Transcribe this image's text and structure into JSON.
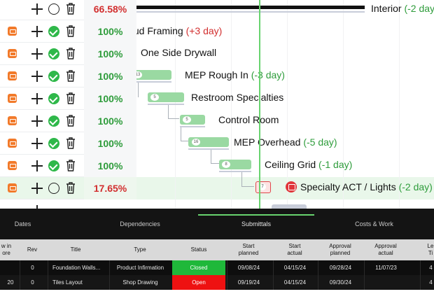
{
  "rows": [
    {
      "status": "open",
      "percent": "66.58%",
      "percent_color": "red",
      "has_task_icon": false
    },
    {
      "status": "done",
      "percent": "100%",
      "percent_color": "green",
      "has_task_icon": true
    },
    {
      "status": "done",
      "percent": "100%",
      "percent_color": "green",
      "has_task_icon": true
    },
    {
      "status": "done",
      "percent": "100%",
      "percent_color": "green",
      "has_task_icon": true
    },
    {
      "status": "done",
      "percent": "100%",
      "percent_color": "green",
      "has_task_icon": true
    },
    {
      "status": "done",
      "percent": "100%",
      "percent_color": "green",
      "has_task_icon": true
    },
    {
      "status": "done",
      "percent": "100%",
      "percent_color": "green",
      "has_task_icon": true
    },
    {
      "status": "done",
      "percent": "100%",
      "percent_color": "green",
      "has_task_icon": true
    },
    {
      "status": "open",
      "percent": "17.65%",
      "percent_color": "red",
      "has_task_icon": true
    }
  ],
  "tasks": {
    "interior": {
      "name": "Interior",
      "delay": "(-2 day)"
    },
    "stud_framing": {
      "name": "tud Framing",
      "delay": "(+3 day)"
    },
    "one_side_drywall": {
      "name": "One Side Drywall",
      "delay": ""
    },
    "mep_rough_in": {
      "name": "MEP Rough In",
      "delay": "(-3 day)",
      "count": "13"
    },
    "restroom": {
      "name": "Restroom Specialties",
      "delay": "",
      "count": "5"
    },
    "control_room": {
      "name": "Control Room",
      "delay": "",
      "count": "5"
    },
    "mep_overhead": {
      "name": "MEP Overhead",
      "delay": "(-5 day)",
      "count": "16"
    },
    "ceiling_grid": {
      "name": "Ceiling Grid",
      "delay": "(-1 day)",
      "count": "8"
    },
    "specialty_act": {
      "name": "Specialty ACT / Lights",
      "delay": "(-2 day)",
      "count": "7"
    }
  },
  "tabs": [
    "Dates",
    "Dependencies",
    "Submittals",
    "Costs & Work"
  ],
  "active_tab": "Submittals",
  "table": {
    "headers": [
      "w in\nore",
      "Rev",
      "Title",
      "Type",
      "Status",
      "Start\nplanned",
      "Start\nactual",
      "Approval\nplanned",
      "Approval\nactual",
      "Le\nTi"
    ],
    "rows": [
      {
        "c0": "",
        "rev": "0",
        "title": "Foundation Walls...",
        "type": "Product Infirmation",
        "status": "Closed",
        "status_color": "#1fb83a",
        "start_planned": "09/08/24",
        "start_actual": "04/15/24",
        "approval_planned": "09/28/24",
        "approval_actual": "11/07/23",
        "last": "4"
      },
      {
        "c0": "20",
        "rev": "0",
        "title": "Tiles Layout",
        "type": "Shop Drawing",
        "status": "Open",
        "status_color": "#ee1111",
        "start_planned": "09/19/24",
        "start_actual": "04/15/24",
        "approval_planned": "09/30/24",
        "approval_actual": "",
        "last": "4"
      }
    ]
  },
  "colors": {
    "accent_green": "#68d36f",
    "bar_green": "#9ad9a2",
    "danger_red": "#e0353a",
    "orange": "#f27a2a"
  }
}
